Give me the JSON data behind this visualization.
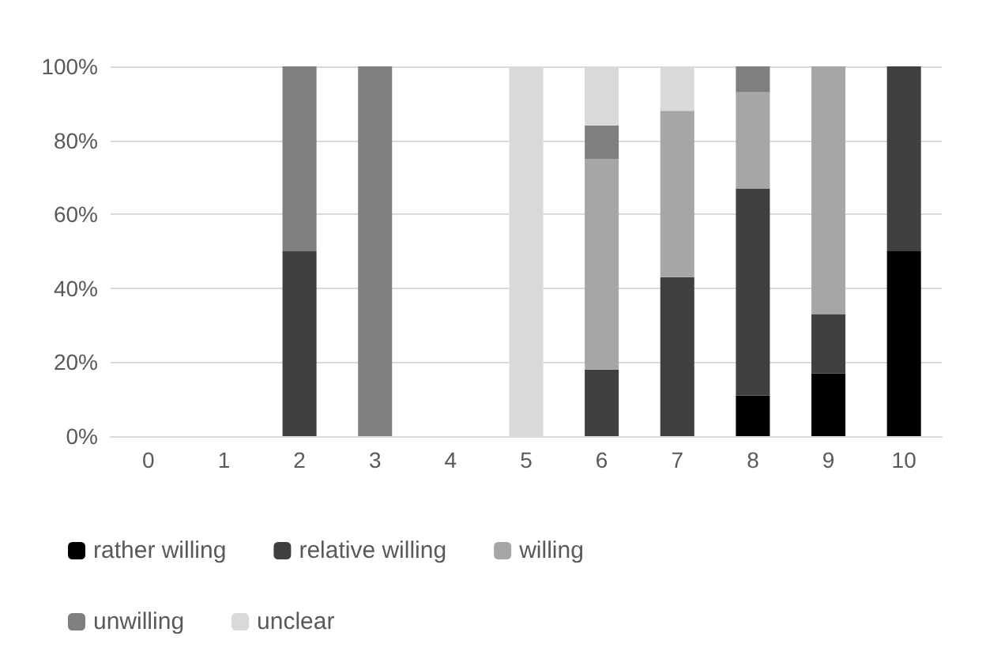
{
  "chart_data": {
    "type": "bar",
    "stacked": true,
    "categories": [
      "0",
      "1",
      "2",
      "3",
      "4",
      "5",
      "6",
      "7",
      "8",
      "9",
      "10"
    ],
    "series": [
      {
        "name": "rather willing",
        "color": "#000000",
        "values": [
          0,
          0,
          0,
          0,
          0,
          0,
          0,
          0,
          11,
          17,
          50
        ]
      },
      {
        "name": "relative willing",
        "color": "#404040",
        "values": [
          0,
          0,
          50,
          0,
          0,
          0,
          18,
          43,
          56,
          16,
          50
        ]
      },
      {
        "name": "willing",
        "color": "#a6a6a6",
        "values": [
          0,
          0,
          0,
          0,
          0,
          0,
          57,
          45,
          26,
          67,
          0
        ]
      },
      {
        "name": "unwilling",
        "color": "#7f7f7f",
        "values": [
          0,
          0,
          50,
          100,
          0,
          0,
          9,
          0,
          7,
          0,
          0
        ]
      },
      {
        "name": "unclear",
        "color": "#d9d9d9",
        "values": [
          0,
          0,
          0,
          0,
          0,
          100,
          16,
          12,
          0,
          0,
          0
        ]
      }
    ],
    "ylim": [
      0,
      100
    ],
    "yticks": [
      {
        "value": 0,
        "label": "0%"
      },
      {
        "value": 20,
        "label": "20%"
      },
      {
        "value": 40,
        "label": "40%"
      },
      {
        "value": 60,
        "label": "60%"
      },
      {
        "value": 80,
        "label": "80%"
      },
      {
        "value": 100,
        "label": "100%"
      }
    ],
    "grid": "y",
    "legend": "bottom"
  }
}
